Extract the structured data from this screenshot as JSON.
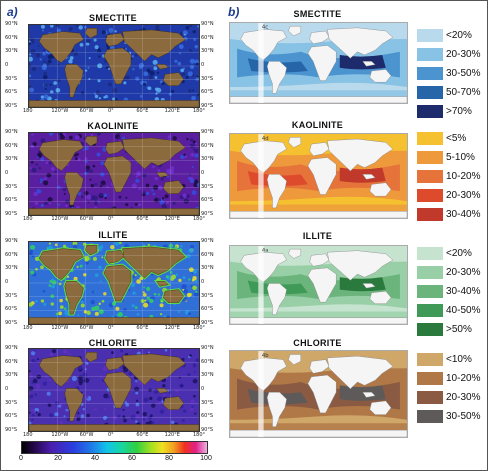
{
  "panel_a": {
    "label": "a)",
    "maps": [
      {
        "title": "SMECTITE",
        "ocean": "#1f3aa8"
      },
      {
        "title": "KAOLINITE",
        "ocean": "#5a1fa0"
      },
      {
        "title": "ILLITE",
        "ocean": "#2f6fd6"
      },
      {
        "title": "CHLORITE",
        "ocean": "#4a2fb0"
      }
    ],
    "lat_ticks_left": [
      "90°N",
      "60°N",
      "30°N",
      "0",
      "30°S",
      "60°S",
      "90°S"
    ],
    "lat_ticks_right": [
      "90°N",
      "60°N",
      "30°N",
      "0",
      "30°S",
      "60°S",
      "90°S"
    ],
    "lon_ticks": [
      "180",
      "120°W",
      "60°W",
      "0°",
      "60°E",
      "120°E",
      "180°"
    ],
    "colorbar_ticks": [
      "0",
      "20",
      "40",
      "60",
      "80",
      "100"
    ]
  },
  "panel_b": {
    "label": "b)",
    "maps": [
      {
        "title": "SMECTITE",
        "tag": "4c",
        "legend": [
          {
            "label": "<20%",
            "color": "#b9d9ec"
          },
          {
            "label": "20-30%",
            "color": "#88c2e4"
          },
          {
            "label": "30-50%",
            "color": "#4b94cf"
          },
          {
            "label": "50-70%",
            "color": "#2565a8"
          },
          {
            "label": ">70%",
            "color": "#1d2a6b"
          }
        ]
      },
      {
        "title": "KAOLINITE",
        "tag": "4d",
        "legend": [
          {
            "label": "<5%",
            "color": "#f6c130"
          },
          {
            "label": "5-10%",
            "color": "#ee9a3c"
          },
          {
            "label": "10-20%",
            "color": "#e6733a"
          },
          {
            "label": "20-30%",
            "color": "#de4a2c"
          },
          {
            "label": "30-40%",
            "color": "#c0392b"
          }
        ]
      },
      {
        "title": "ILLITE",
        "tag": "4a",
        "legend": [
          {
            "label": "<20%",
            "color": "#c5e3cf"
          },
          {
            "label": "20-30%",
            "color": "#98cfa7"
          },
          {
            "label": "30-40%",
            "color": "#6bb57d"
          },
          {
            "label": "40-50%",
            "color": "#3f9a58"
          },
          {
            "label": ">50%",
            "color": "#2a7a3d"
          }
        ]
      },
      {
        "title": "CHLORITE",
        "tag": "4b",
        "legend": [
          {
            "label": "<10%",
            "color": "#cfa769"
          },
          {
            "label": "10-20%",
            "color": "#b07846"
          },
          {
            "label": "20-30%",
            "color": "#8a5a43"
          },
          {
            "label": "30-50%",
            "color": "#5e5a5a"
          }
        ]
      }
    ]
  }
}
